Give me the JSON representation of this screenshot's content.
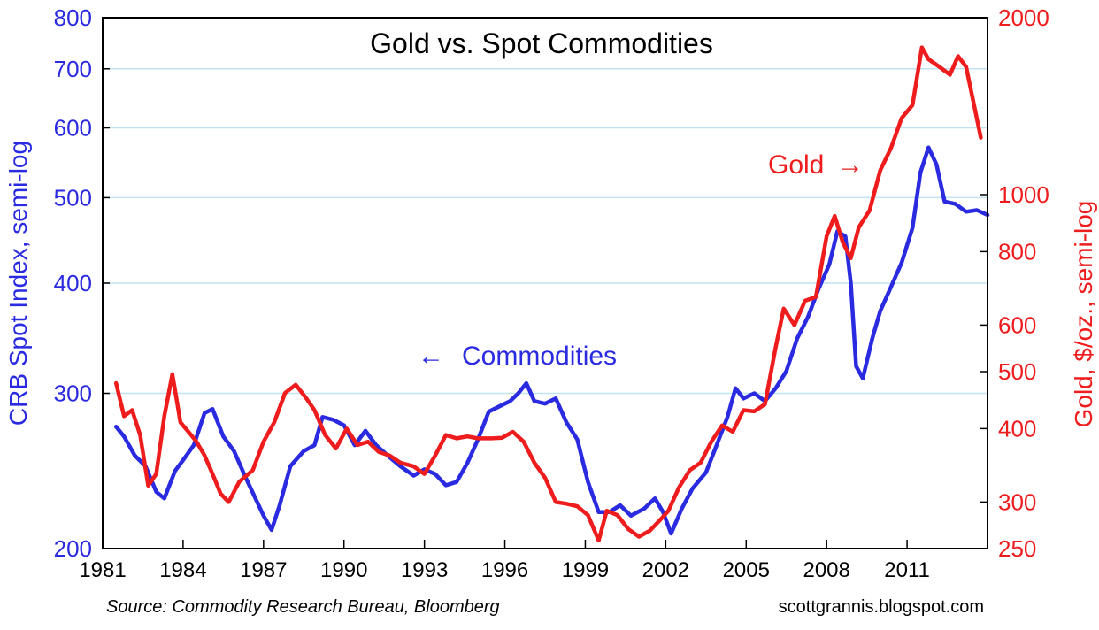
{
  "chart_data": {
    "type": "line",
    "title": "Gold vs. Spot Commodities",
    "ylabel_left": "CRB Spot Index, semi-log",
    "ylabel_right": "Gold, $/oz., semi-log",
    "ylim_left": [
      200,
      800
    ],
    "ylim_right": [
      250,
      2000
    ],
    "yscale": "log",
    "xlim": [
      1981,
      2014
    ],
    "x_ticks": [
      "1981",
      "1984",
      "1987",
      "1990",
      "1993",
      "1996",
      "1999",
      "2002",
      "2005",
      "2008",
      "2011"
    ],
    "y_ticks_left": [
      200,
      300,
      400,
      500,
      600,
      700,
      800
    ],
    "y_ticks_right": [
      250,
      300,
      400,
      500,
      600,
      800,
      1000,
      2000
    ],
    "source": "Source: Commodity Research Bureau, Bloomberg",
    "site": "scottgrannis.blogspot.com",
    "annotations": {
      "gold": "Gold",
      "gold_arrow": "→",
      "commodities": "Commodities",
      "commodities_arrow": "←"
    },
    "colors": {
      "commodities": "#2a2ae0",
      "gold": "#ee1c1c",
      "grid": "#bfe3ef"
    },
    "series": [
      {
        "name": "Commodities",
        "axis": "left",
        "points": [
          [
            1981.5,
            275
          ],
          [
            1981.8,
            268
          ],
          [
            1982.2,
            255
          ],
          [
            1982.6,
            248
          ],
          [
            1983.0,
            232
          ],
          [
            1983.3,
            228
          ],
          [
            1983.7,
            245
          ],
          [
            1984.0,
            252
          ],
          [
            1984.4,
            262
          ],
          [
            1984.8,
            285
          ],
          [
            1985.1,
            288
          ],
          [
            1985.5,
            268
          ],
          [
            1985.9,
            258
          ],
          [
            1986.3,
            242
          ],
          [
            1986.7,
            228
          ],
          [
            1987.0,
            218
          ],
          [
            1987.3,
            210
          ],
          [
            1987.6,
            224
          ],
          [
            1988.0,
            248
          ],
          [
            1988.5,
            258
          ],
          [
            1988.9,
            262
          ],
          [
            1989.2,
            282
          ],
          [
            1989.6,
            280
          ],
          [
            1990.0,
            276
          ],
          [
            1990.4,
            262
          ],
          [
            1990.8,
            272
          ],
          [
            1991.2,
            262
          ],
          [
            1991.7,
            254
          ],
          [
            1992.1,
            248
          ],
          [
            1992.6,
            242
          ],
          [
            1993.0,
            246
          ],
          [
            1993.4,
            243
          ],
          [
            1993.8,
            236
          ],
          [
            1994.2,
            238
          ],
          [
            1994.6,
            250
          ],
          [
            1995.0,
            266
          ],
          [
            1995.4,
            286
          ],
          [
            1995.8,
            290
          ],
          [
            1996.2,
            294
          ],
          [
            1996.5,
            300
          ],
          [
            1996.8,
            308
          ],
          [
            1997.1,
            294
          ],
          [
            1997.5,
            292
          ],
          [
            1997.9,
            296
          ],
          [
            1998.3,
            278
          ],
          [
            1998.7,
            266
          ],
          [
            1999.1,
            238
          ],
          [
            1999.5,
            220
          ],
          [
            1999.9,
            220
          ],
          [
            2000.3,
            224
          ],
          [
            2000.7,
            218
          ],
          [
            2001.2,
            222
          ],
          [
            2001.6,
            228
          ],
          [
            2001.9,
            220
          ],
          [
            2002.2,
            208
          ],
          [
            2002.6,
            222
          ],
          [
            2003.0,
            234
          ],
          [
            2003.5,
            244
          ],
          [
            2003.9,
            262
          ],
          [
            2004.3,
            282
          ],
          [
            2004.6,
            304
          ],
          [
            2004.9,
            296
          ],
          [
            2005.3,
            300
          ],
          [
            2005.7,
            294
          ],
          [
            2006.1,
            304
          ],
          [
            2006.5,
            318
          ],
          [
            2006.9,
            346
          ],
          [
            2007.3,
            366
          ],
          [
            2007.7,
            394
          ],
          [
            2008.1,
            420
          ],
          [
            2008.4,
            458
          ],
          [
            2008.7,
            452
          ],
          [
            2008.9,
            400
          ],
          [
            2009.1,
            322
          ],
          [
            2009.35,
            312
          ],
          [
            2009.7,
            346
          ],
          [
            2010.0,
            372
          ],
          [
            2010.4,
            396
          ],
          [
            2010.8,
            422
          ],
          [
            2011.2,
            462
          ],
          [
            2011.5,
            534
          ],
          [
            2011.8,
            570
          ],
          [
            2012.1,
            545
          ],
          [
            2012.4,
            495
          ],
          [
            2012.8,
            492
          ],
          [
            2013.2,
            482
          ],
          [
            2013.6,
            484
          ],
          [
            2014.0,
            478
          ]
        ]
      },
      {
        "name": "Gold",
        "axis": "right",
        "points": [
          [
            1981.5,
            478
          ],
          [
            1981.8,
            420
          ],
          [
            1982.1,
            430
          ],
          [
            1982.4,
            390
          ],
          [
            1982.7,
            320
          ],
          [
            1983.0,
            335
          ],
          [
            1983.3,
            420
          ],
          [
            1983.6,
            495
          ],
          [
            1983.9,
            410
          ],
          [
            1984.2,
            395
          ],
          [
            1984.5,
            380
          ],
          [
            1984.8,
            360
          ],
          [
            1985.1,
            335
          ],
          [
            1985.4,
            310
          ],
          [
            1985.7,
            300
          ],
          [
            1986.1,
            325
          ],
          [
            1986.6,
            340
          ],
          [
            1987.0,
            380
          ],
          [
            1987.4,
            410
          ],
          [
            1987.8,
            460
          ],
          [
            1988.2,
            475
          ],
          [
            1988.6,
            450
          ],
          [
            1988.9,
            430
          ],
          [
            1989.3,
            390
          ],
          [
            1989.7,
            370
          ],
          [
            1990.1,
            400
          ],
          [
            1990.5,
            375
          ],
          [
            1990.9,
            380
          ],
          [
            1991.3,
            365
          ],
          [
            1991.7,
            360
          ],
          [
            1992.1,
            350
          ],
          [
            1992.6,
            345
          ],
          [
            1993.0,
            335
          ],
          [
            1993.4,
            360
          ],
          [
            1993.8,
            390
          ],
          [
            1994.2,
            385
          ],
          [
            1994.6,
            388
          ],
          [
            1995.0,
            385
          ],
          [
            1995.5,
            385
          ],
          [
            1995.9,
            386
          ],
          [
            1996.3,
            395
          ],
          [
            1996.7,
            380
          ],
          [
            1997.1,
            350
          ],
          [
            1997.5,
            330
          ],
          [
            1997.9,
            300
          ],
          [
            1998.3,
            298
          ],
          [
            1998.7,
            295
          ],
          [
            1999.1,
            285
          ],
          [
            1999.5,
            258
          ],
          [
            1999.8,
            290
          ],
          [
            2000.2,
            285
          ],
          [
            2000.6,
            270
          ],
          [
            2001.0,
            262
          ],
          [
            2001.4,
            268
          ],
          [
            2001.8,
            280
          ],
          [
            2002.1,
            290
          ],
          [
            2002.5,
            318
          ],
          [
            2002.9,
            340
          ],
          [
            2003.3,
            350
          ],
          [
            2003.7,
            380
          ],
          [
            2004.1,
            405
          ],
          [
            2004.5,
            395
          ],
          [
            2004.9,
            430
          ],
          [
            2005.3,
            428
          ],
          [
            2005.7,
            440
          ],
          [
            2006.1,
            550
          ],
          [
            2006.4,
            640
          ],
          [
            2006.8,
            600
          ],
          [
            2007.2,
            660
          ],
          [
            2007.6,
            670
          ],
          [
            2008.0,
            850
          ],
          [
            2008.3,
            920
          ],
          [
            2008.6,
            830
          ],
          [
            2008.9,
            780
          ],
          [
            2009.2,
            880
          ],
          [
            2009.6,
            940
          ],
          [
            2010.0,
            1100
          ],
          [
            2010.4,
            1200
          ],
          [
            2010.8,
            1350
          ],
          [
            2011.2,
            1420
          ],
          [
            2011.55,
            1780
          ],
          [
            2011.8,
            1700
          ],
          [
            2012.2,
            1650
          ],
          [
            2012.6,
            1600
          ],
          [
            2012.9,
            1720
          ],
          [
            2013.2,
            1650
          ],
          [
            2013.5,
            1420
          ],
          [
            2013.75,
            1250
          ]
        ]
      }
    ]
  }
}
